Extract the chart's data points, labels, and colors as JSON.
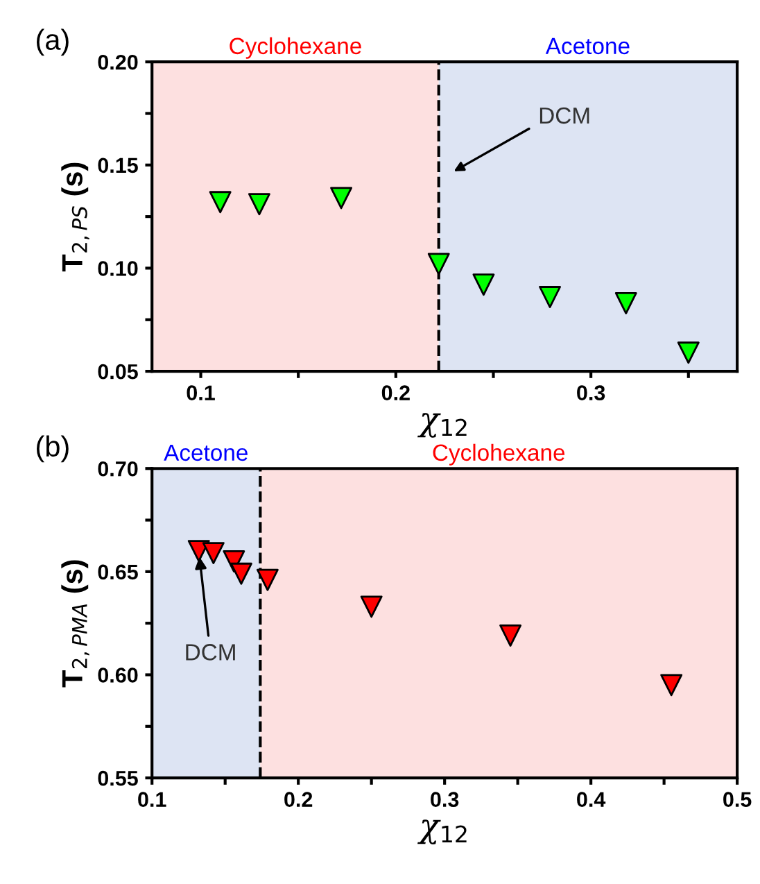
{
  "chart_data": [
    {
      "type": "scatter",
      "xlabel": "χ$_{12}$",
      "ylabel": "T$_{2,PS}$ (s)",
      "annotations": [
        "(a)",
        "DCM"
      ],
      "series": [
        {
          "color": "#00ff00",
          "x": [
            0.11,
            0.13,
            0.172,
            0.222,
            0.245,
            0.279,
            0.318,
            0.35
          ],
          "values": [
            0.132,
            0.131,
            0.134,
            0.102,
            0.092,
            0.086,
            0.083,
            0.059
          ]
        }
      ],
      "marker": "triangle",
      "grid": false,
      "legend": false,
      "xlim": [
        0.075,
        0.375
      ],
      "xticks": [
        0.1,
        {
          "value": 0.15,
          "label": null
        },
        0.2,
        {
          "value": 0.25,
          "label": null
        },
        0.3,
        {
          "value": 0.35,
          "label": null
        }
      ],
      "ylim": [
        0.05,
        0.2
      ],
      "yticks": [
        0.05,
        {
          "value": 0.075,
          "label": null
        },
        "0.10",
        {
          "value": 0.125,
          "label": null
        },
        0.15,
        {
          "value": 0.175,
          "label": null
        },
        "0.20"
      ],
      "ref_lines": [
        {
          "axis": "x",
          "value": 0.222,
          "line_style": "dashed",
          "color": "#000000"
        }
      ],
      "bands": [
        {
          "axis": "x",
          "from": 0.075,
          "to": 0.222,
          "label": "Cyclohexane",
          "color": "#fde0e0"
        },
        {
          "axis": "x",
          "from": 0.222,
          "to": 0.375,
          "label": "Acetone",
          "color": "#dde4f3"
        }
      ]
    },
    {
      "type": "scatter",
      "xlabel": "χ$_{12}$",
      "ylabel": "T$_{2,PMA}$ (s)",
      "annotations": [
        "(b)",
        {
          "text": "DCM",
          "x": 0.132,
          "y": 0.66
        }
      ],
      "series": [
        {
          "color": "#ff0000",
          "x": [
            0.132,
            0.142,
            0.156,
            0.161,
            0.179,
            0.25,
            0.345,
            0.455
          ],
          "values": [
            0.66,
            0.659,
            0.655,
            0.649,
            0.646,
            0.633,
            0.619,
            0.595
          ]
        }
      ],
      "marker": "triangle",
      "grid": false,
      "legend": false,
      "xlim": [
        0.1,
        0.5
      ],
      "xticks": [
        0.1,
        {
          "value": 0.15,
          "label": null
        },
        0.2,
        {
          "value": 0.25,
          "label": null
        },
        0.3,
        {
          "value": 0.35,
          "label": null
        },
        0.4,
        {
          "value": 0.45,
          "label": null
        },
        0.5
      ],
      "ylim": [
        0.55,
        0.7
      ],
      "yticks": [
        0.55,
        {
          "value": 0.575,
          "label": null
        },
        "0.60",
        {
          "value": 0.625,
          "label": null
        },
        0.65,
        {
          "value": 0.675,
          "label": null
        },
        "0.70"
      ],
      "ref_lines": [
        {
          "axis": "x",
          "value": 0.174,
          "line_style": "dashed",
          "color": "#000000"
        }
      ],
      "bands": [
        {
          "axis": "x",
          "from": 0.1,
          "to": 0.174,
          "label": "Acetone",
          "color": "#dde4f3"
        },
        {
          "axis": "x",
          "from": 0.174,
          "to": 0.5,
          "label": "Cyclohexane",
          "color": "#fde0e0"
        }
      ]
    }
  ]
}
